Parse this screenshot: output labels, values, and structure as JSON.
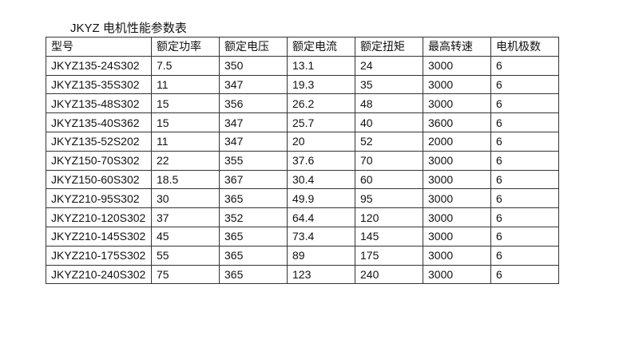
{
  "title": "JKYZ 电机性能参数表",
  "headers": [
    "型号",
    "额定功率",
    "额定电压",
    "额定电流",
    "额定扭矩",
    "最高转速",
    "电机极数"
  ],
  "rows": [
    [
      "JKYZ135-24S302",
      "7.5",
      "350",
      "13.1",
      "24",
      "3000",
      "6"
    ],
    [
      "JKYZ135-35S302",
      "11",
      "347",
      "19.3",
      "35",
      "3000",
      "6"
    ],
    [
      "JKYZ135-48S302",
      "15",
      "356",
      "26.2",
      "48",
      "3000",
      "6"
    ],
    [
      "JKYZ135-40S362",
      "15",
      "347",
      "25.7",
      "40",
      "3600",
      "6"
    ],
    [
      "JKYZ135-52S202",
      "11",
      "347",
      "20",
      "52",
      "2000",
      "6"
    ],
    [
      "JKYZ150-70S302",
      "22",
      "355",
      "37.6",
      "70",
      "3000",
      "6"
    ],
    [
      "JKYZ150-60S302",
      "18.5",
      "367",
      "30.4",
      "60",
      "3000",
      "6"
    ],
    [
      "JKYZ210-95S302",
      "30",
      "365",
      "49.9",
      "95",
      "3000",
      "6"
    ],
    [
      "JKYZ210-120S302",
      "37",
      "352",
      "64.4",
      "120",
      "3000",
      "6"
    ],
    [
      "JKYZ210-145S302",
      "45",
      "365",
      "73.4",
      "145",
      "3000",
      "6"
    ],
    [
      "JKYZ210-175S302",
      "55",
      "365",
      "89",
      "175",
      "3000",
      "6"
    ],
    [
      "JKYZ210-240S302",
      "75",
      "365",
      "123",
      "240",
      "3000",
      "6"
    ]
  ]
}
